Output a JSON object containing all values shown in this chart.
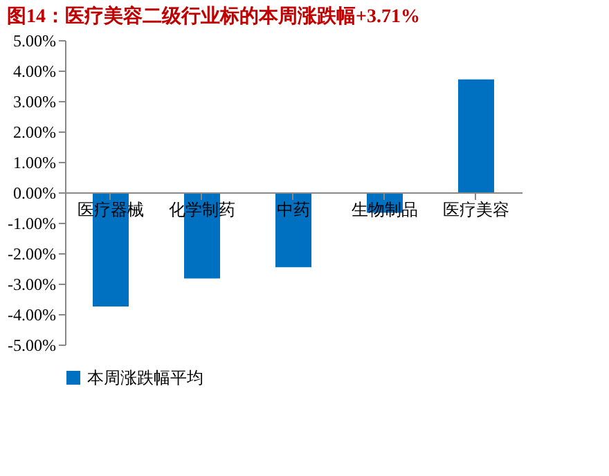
{
  "chart_data": {
    "type": "bar",
    "title": "图14：医疗美容二级行业标的本周涨跌幅+3.71%",
    "categories": [
      "医疗器械",
      "化学制药",
      "中药",
      "生物制品",
      "医疗美容"
    ],
    "series": [
      {
        "name": "本周涨跌幅平均",
        "color": "#0070c0",
        "values": [
          -3.75,
          -2.83,
          -2.46,
          -0.67,
          3.71
        ]
      }
    ],
    "ylim": [
      -5,
      5
    ],
    "yticks": [
      {
        "value": 5,
        "label": "5.00%"
      },
      {
        "value": 4,
        "label": "4.00%"
      },
      {
        "value": 3,
        "label": "3.00%"
      },
      {
        "value": 2,
        "label": "2.00%"
      },
      {
        "value": 1,
        "label": "1.00%"
      },
      {
        "value": 0,
        "label": "0.00%"
      },
      {
        "value": -1,
        "label": "-1.00%"
      },
      {
        "value": -2,
        "label": "-2.00%"
      },
      {
        "value": -3,
        "label": "-3.00%"
      },
      {
        "value": -4,
        "label": "-4.00%"
      },
      {
        "value": -5,
        "label": "-5.00%"
      }
    ],
    "grid": false,
    "legend": "bottom"
  }
}
